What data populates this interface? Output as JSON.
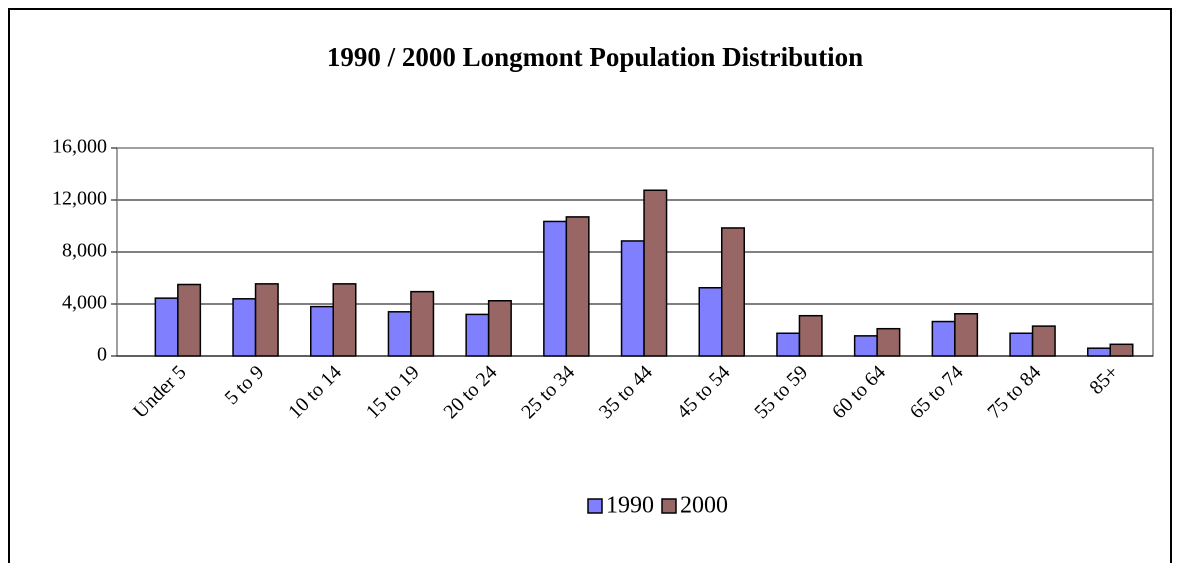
{
  "chart_data": {
    "type": "bar",
    "title": "1990 / 2000 Longmont Population Distribution",
    "categories": [
      "Under 5",
      "5 to 9",
      "10 to 14",
      "15 to 19",
      "20 to 24",
      "25 to 34",
      "35 to 44",
      "45 to 54",
      "55 to 59",
      "60 to 64",
      "65 to 74",
      "75 to 84",
      "85+"
    ],
    "series": [
      {
        "name": "1990",
        "color": "#8080ff",
        "values": [
          4450,
          4400,
          3800,
          3400,
          3200,
          10350,
          8850,
          5250,
          1750,
          1550,
          2650,
          1750,
          600
        ]
      },
      {
        "name": "2000",
        "color": "#996666",
        "values": [
          5500,
          5550,
          5550,
          4950,
          4250,
          10700,
          12750,
          9850,
          3100,
          2100,
          3250,
          2300,
          900
        ]
      }
    ],
    "ylim": [
      0,
      16000
    ],
    "yticks": [
      0,
      {
        "value": 4000,
        "label": "4,000"
      },
      {
        "value": 8000,
        "label": "8,000"
      },
      {
        "value": 12000,
        "label": "12,000"
      },
      {
        "value": 16000,
        "label": "16,000"
      }
    ],
    "grid": true
  }
}
